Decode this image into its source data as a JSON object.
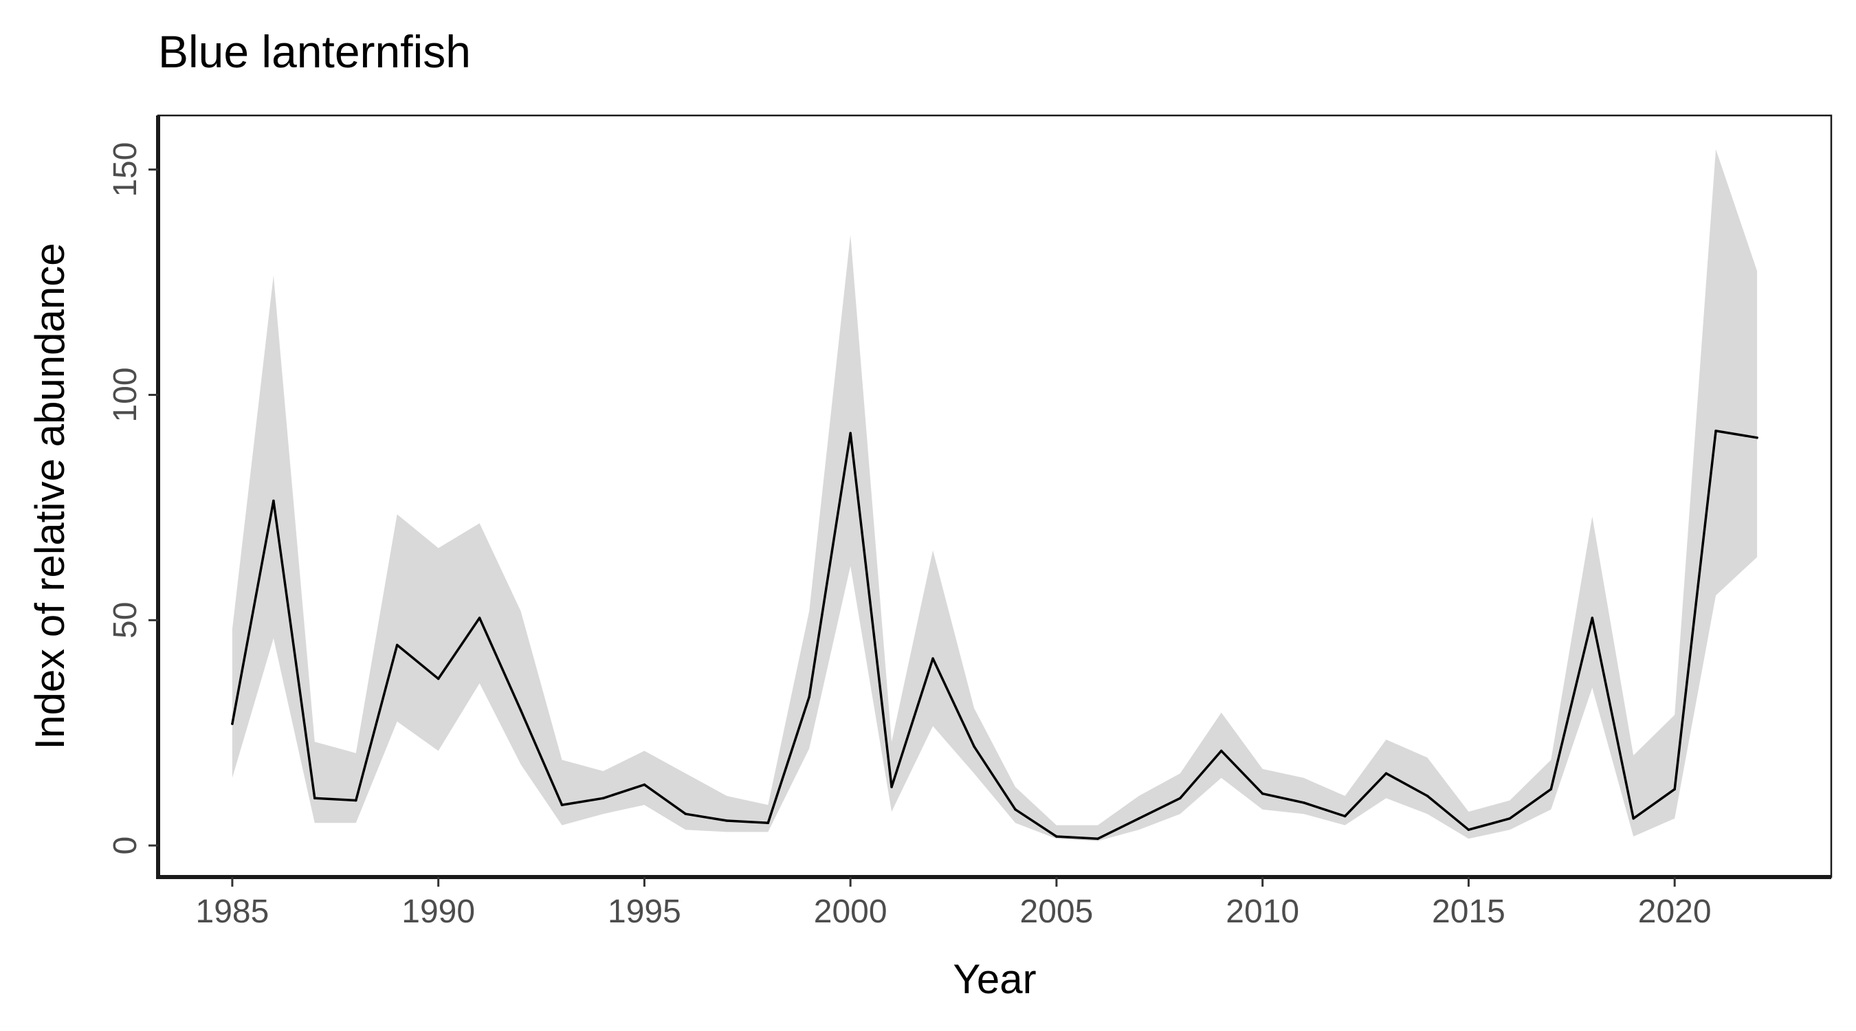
{
  "chart_data": {
    "type": "line",
    "title": "Blue lanternfish",
    "xlabel": "Year",
    "ylabel": "Index of relative abundance",
    "xlim": [
      1983.2,
      2023.8
    ],
    "ylim": [
      -7,
      162
    ],
    "xticks": [
      1985,
      1990,
      1995,
      2000,
      2005,
      2010,
      2015,
      2020
    ],
    "yticks": [
      0,
      50,
      100,
      150
    ],
    "grid": false,
    "legend": "none",
    "colors": {
      "line": "#000000",
      "band": "#d9d9d9",
      "axis": "#1a1a1a",
      "tick_text": "#4d4d4d"
    },
    "series": [
      {
        "x": [
          1985,
          1986,
          1987,
          1988,
          1989,
          1990,
          1991,
          1992,
          1993,
          1994,
          1995,
          1996,
          1997,
          1998,
          1999,
          2000,
          2001,
          2002,
          2003,
          2004,
          2005,
          2006,
          2007,
          2008,
          2009,
          2010,
          2011,
          2012,
          2013,
          2014,
          2015,
          2016,
          2017,
          2018,
          2019,
          2020,
          2021,
          2022
        ],
        "values": [
          27,
          76.5,
          10.5,
          10,
          44.5,
          37,
          50.5,
          30,
          9,
          10.5,
          13.5,
          7,
          5.5,
          5,
          33,
          91.5,
          13,
          41.5,
          22,
          8,
          2,
          1.5,
          6,
          10.5,
          21,
          11.5,
          9.5,
          6.5,
          16,
          11,
          3.5,
          6,
          12.5,
          50.5,
          6,
          12.5,
          92,
          90.5
        ],
        "lower": [
          15,
          46,
          5,
          5,
          27.5,
          21,
          36,
          18,
          4.5,
          7,
          9,
          3.5,
          3,
          3,
          21.5,
          62,
          7.5,
          26.5,
          16,
          5,
          1.5,
          1,
          3.5,
          7,
          15,
          8,
          7,
          4.5,
          10.5,
          7,
          1.5,
          3.5,
          8,
          35,
          2,
          6,
          55.5,
          64
        ],
        "upper": [
          48,
          126.5,
          23,
          20.5,
          73.5,
          66,
          71.5,
          52,
          19,
          16.5,
          21,
          16,
          11,
          9,
          52,
          135.5,
          23,
          65.5,
          30.5,
          13,
          4.5,
          4.5,
          11,
          16,
          29.5,
          17,
          15,
          11,
          23.5,
          19.5,
          7.5,
          10,
          19,
          73,
          20,
          29,
          154.5,
          127.5
        ]
      }
    ]
  }
}
